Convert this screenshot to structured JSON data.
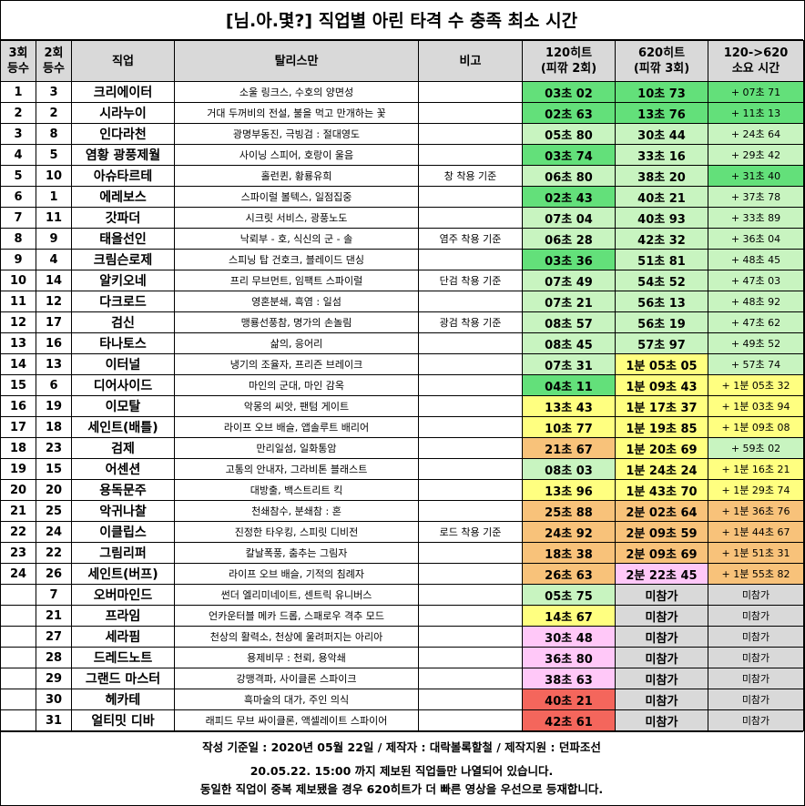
{
  "title": "[님.아.몇?] 직업별 아린 타격 수 충족 최소 시간",
  "headers": {
    "rank3": [
      "3회",
      "등수"
    ],
    "rank2": [
      "2회",
      "등수"
    ],
    "job": "직업",
    "talisman": "탈리스만",
    "note": "비고",
    "t120": [
      "120히트",
      "(피깎 2회)"
    ],
    "t620": [
      "620히트",
      "(피깎 3회)"
    ],
    "diff": [
      "120->620",
      "소요 시간"
    ]
  },
  "colors": {
    "green_dark": "#63e07a",
    "green_light": "#c8f4c0",
    "yellow": "#ffff80",
    "orange": "#f8c27a",
    "pink": "#ffc8f8",
    "red": "#f4665c",
    "grey": "#d9d9d9",
    "white": "#ffffff"
  },
  "rows": [
    {
      "r3": "1",
      "r2": "3",
      "job": "크리에이터",
      "tal": "소울 링크스, 수호의 양면성",
      "note": "",
      "t120": "03초 02",
      "t620": "10초 73",
      "diff": "+ 07초 71",
      "c120": "green_dark",
      "c620": "green_dark",
      "cd": "green_dark"
    },
    {
      "r3": "2",
      "r2": "2",
      "job": "시라누이",
      "tal": "거대 두꺼비의 전설, 불을 먹고 만개하는 꽃",
      "note": "",
      "t120": "02초 63",
      "t620": "13초 76",
      "diff": "+ 11초 13",
      "c120": "green_dark",
      "c620": "green_dark",
      "cd": "green_dark"
    },
    {
      "r3": "3",
      "r2": "8",
      "job": "인다라천",
      "tal": "광명부동진, 극빙검 : 절대영도",
      "note": "",
      "t120": "05초 80",
      "t620": "30초 44",
      "diff": "+ 24초 64",
      "c120": "green_light",
      "c620": "green_light",
      "cd": "green_light"
    },
    {
      "r3": "4",
      "r2": "5",
      "job": "염황 광풍제월",
      "tal": "사이닝 스피어, 호랑이 울음",
      "note": "",
      "t120": "03초 74",
      "t620": "33초 16",
      "diff": "+ 29초 42",
      "c120": "green_dark",
      "c620": "green_light",
      "cd": "green_light"
    },
    {
      "r3": "5",
      "r2": "10",
      "job": "아슈타르테",
      "tal": "홀런퀸, 황룡유희",
      "note": "창 착용 기준",
      "t120": "06초 80",
      "t620": "38초 20",
      "diff": "+ 31초 40",
      "c120": "green_light",
      "c620": "green_light",
      "cd": "green_dark"
    },
    {
      "r3": "6",
      "r2": "1",
      "job": "에레보스",
      "tal": "스파이럴 볼텍스, 일점집중",
      "note": "",
      "t120": "02초 43",
      "t620": "40초 21",
      "diff": "+ 37초 78",
      "c120": "green_dark",
      "c620": "green_light",
      "cd": "green_light"
    },
    {
      "r3": "7",
      "r2": "11",
      "job": "갓파더",
      "tal": "시크릿 서비스, 광풍노도",
      "note": "",
      "t120": "07초 04",
      "t620": "40초 93",
      "diff": "+ 33초 89",
      "c120": "green_light",
      "c620": "green_light",
      "cd": "green_light"
    },
    {
      "r3": "8",
      "r2": "9",
      "job": "태을선인",
      "tal": "낙뢰부 - 호, 식신의 군 - 솔",
      "note": "염주 착용 기준",
      "t120": "06초 28",
      "t620": "42초 32",
      "diff": "+ 36초 04",
      "c120": "green_light",
      "c620": "green_light",
      "cd": "green_light"
    },
    {
      "r3": "9",
      "r2": "4",
      "job": "크림슨로제",
      "tal": "스피닝 탑 건호크, 블레이드 댄싱",
      "note": "",
      "t120": "03초 36",
      "t620": "51초 81",
      "diff": "+ 48초 45",
      "c120": "green_dark",
      "c620": "green_light",
      "cd": "green_light"
    },
    {
      "r3": "10",
      "r2": "14",
      "job": "알키오네",
      "tal": "프리 무브먼트, 임팩트 스파이럴",
      "note": "단검 착용 기준",
      "t120": "07초 49",
      "t620": "54초 52",
      "diff": "+ 47초 03",
      "c120": "green_light",
      "c620": "green_light",
      "cd": "green_light"
    },
    {
      "r3": "11",
      "r2": "12",
      "job": "다크로드",
      "tal": "영혼분쇄, 흑염 : 일섬",
      "note": "",
      "t120": "07초 21",
      "t620": "56초 13",
      "diff": "+ 48초 92",
      "c120": "green_light",
      "c620": "green_light",
      "cd": "green_light"
    },
    {
      "r3": "12",
      "r2": "17",
      "job": "검신",
      "tal": "맹룡선풍참, 명가의 손놀림",
      "note": "광검 착용 기준",
      "t120": "08초 57",
      "t620": "56초 19",
      "diff": "+ 47초 62",
      "c120": "green_light",
      "c620": "green_light",
      "cd": "green_light"
    },
    {
      "r3": "13",
      "r2": "16",
      "job": "타나토스",
      "tal": "삶의, 응어리",
      "note": "",
      "t120": "08초 45",
      "t620": "57초 97",
      "diff": "+ 49초 52",
      "c120": "green_light",
      "c620": "green_light",
      "cd": "green_light"
    },
    {
      "r3": "14",
      "r2": "13",
      "job": "이터널",
      "tal": "냉기의 조율자, 프리즌 브레이크",
      "note": "",
      "t120": "07초 31",
      "t620": "1분 05초 05",
      "diff": "+ 57초 74",
      "c120": "green_light",
      "c620": "yellow",
      "cd": "green_light"
    },
    {
      "r3": "15",
      "r2": "6",
      "job": "디어사이드",
      "tal": "마인의 군대, 마인 감옥",
      "note": "",
      "t120": "04초 11",
      "t620": "1분 09초 43",
      "diff": "+ 1분 05초 32",
      "c120": "green_dark",
      "c620": "yellow",
      "cd": "yellow"
    },
    {
      "r3": "16",
      "r2": "19",
      "job": "이모탈",
      "tal": "악몽의 씨앗, 팬텀 게이트",
      "note": "",
      "t120": "13초 43",
      "t620": "1분 17초 37",
      "diff": "+ 1분 03초 94",
      "c120": "yellow",
      "c620": "yellow",
      "cd": "yellow"
    },
    {
      "r3": "17",
      "r2": "18",
      "job": "세인트(배틀)",
      "tal": "라이프 오브 배슬, 앱솔루트 배리어",
      "note": "",
      "t120": "10초 77",
      "t620": "1분 19초 85",
      "diff": "+ 1분 09초 08",
      "c120": "yellow",
      "c620": "yellow",
      "cd": "yellow"
    },
    {
      "r3": "18",
      "r2": "23",
      "job": "검제",
      "tal": "만리일섬, 일화통암",
      "note": "",
      "t120": "21초 67",
      "t620": "1분 20초 69",
      "diff": "+ 59초 02",
      "c120": "orange",
      "c620": "yellow",
      "cd": "green_light"
    },
    {
      "r3": "19",
      "r2": "15",
      "job": "어센션",
      "tal": "고통의 안내자, 그라비톤 블래스트",
      "note": "",
      "t120": "08초 03",
      "t620": "1분 24초 24",
      "diff": "+ 1분 16초 21",
      "c120": "green_light",
      "c620": "yellow",
      "cd": "yellow"
    },
    {
      "r3": "20",
      "r2": "20",
      "job": "용독문주",
      "tal": "대방출, 백스트리트 킥",
      "note": "",
      "t120": "13초 96",
      "t620": "1분 43초 70",
      "diff": "+ 1분 29초 74",
      "c120": "yellow",
      "c620": "yellow",
      "cd": "yellow"
    },
    {
      "r3": "21",
      "r2": "25",
      "job": "악귀나찰",
      "tal": "천쇄참수, 분쇄참 : 혼",
      "note": "",
      "t120": "25초 88",
      "t620": "2분 02초 64",
      "diff": "+ 1분 36초 76",
      "c120": "orange",
      "c620": "orange",
      "cd": "orange"
    },
    {
      "r3": "22",
      "r2": "24",
      "job": "이클립스",
      "tal": "진정한 타우킹, 스피릿 디비전",
      "note": "로드 착용 기준",
      "t120": "24초 92",
      "t620": "2분 09초 59",
      "diff": "+ 1분 44초 67",
      "c120": "orange",
      "c620": "orange",
      "cd": "orange"
    },
    {
      "r3": "23",
      "r2": "22",
      "job": "그림리퍼",
      "tal": "칼날폭풍, 춤추는 그림자",
      "note": "",
      "t120": "18초 38",
      "t620": "2분 09초 69",
      "diff": "+ 1분 51초 31",
      "c120": "orange",
      "c620": "orange",
      "cd": "orange"
    },
    {
      "r3": "24",
      "r2": "26",
      "job": "세인트(버프)",
      "tal": "라이프 오브 배슬, 기적의 침례자",
      "note": "",
      "t120": "26초 63",
      "t620": "2분 22초 45",
      "diff": "+ 1분 55초 82",
      "c120": "orange",
      "c620": "pink",
      "cd": "orange"
    },
    {
      "r3": "",
      "r2": "7",
      "job": "오버마인드",
      "tal": "썬더 엘리미네이트, 센트릭 유니버스",
      "note": "",
      "t120": "05초 75",
      "t620": "미참가",
      "diff": "미참가",
      "c120": "green_light",
      "c620": "grey",
      "cd": "grey"
    },
    {
      "r3": "",
      "r2": "21",
      "job": "프라임",
      "tal": "언카운터블 메카 드롭, 스패로우 격추 모드",
      "note": "",
      "t120": "14초 67",
      "t620": "미참가",
      "diff": "미참가",
      "c120": "yellow",
      "c620": "grey",
      "cd": "grey"
    },
    {
      "r3": "",
      "r2": "27",
      "job": "세라핌",
      "tal": "천상의 활력소, 천상에 울려퍼지는 아리아",
      "note": "",
      "t120": "30초 48",
      "t620": "미참가",
      "diff": "미참가",
      "c120": "pink",
      "c620": "grey",
      "cd": "grey"
    },
    {
      "r3": "",
      "r2": "28",
      "job": "드레드노트",
      "tal": "용제비무 : 천뢰, 용악쇄",
      "note": "",
      "t120": "36초 80",
      "t620": "미참가",
      "diff": "미참가",
      "c120": "pink",
      "c620": "grey",
      "cd": "grey"
    },
    {
      "r3": "",
      "r2": "29",
      "job": "그랜드 마스터",
      "tal": "강맹격파, 사이클론 스파이크",
      "note": "",
      "t120": "38초 63",
      "t620": "미참가",
      "diff": "미참가",
      "c120": "pink",
      "c620": "grey",
      "cd": "grey"
    },
    {
      "r3": "",
      "r2": "30",
      "job": "헤카테",
      "tal": "흑마술의 대가, 주인 의식",
      "note": "",
      "t120": "40초 21",
      "t620": "미참가",
      "diff": "미참가",
      "c120": "red",
      "c620": "grey",
      "cd": "grey"
    },
    {
      "r3": "",
      "r2": "31",
      "job": "얼티밋 디바",
      "tal": "래피드 무브 싸이클론, 액셀레이트 스파이어",
      "note": "",
      "t120": "42초 61",
      "t620": "미참가",
      "diff": "미참가",
      "c120": "red",
      "c620": "grey",
      "cd": "grey"
    }
  ],
  "footer": {
    "line1": "작성 기준일 : 2020년 05월 22일 / 제작자 : 대락볼록할철 / 제작지원 : 던파조선",
    "line2": "20.05.22. 15:00 까지 제보된 직업들만 나열되어 있습니다.",
    "line3": "동일한 직업이 중복 제보됐을 경우 620히트가 더 빠른 영상을 우선으로 등재합니다."
  }
}
